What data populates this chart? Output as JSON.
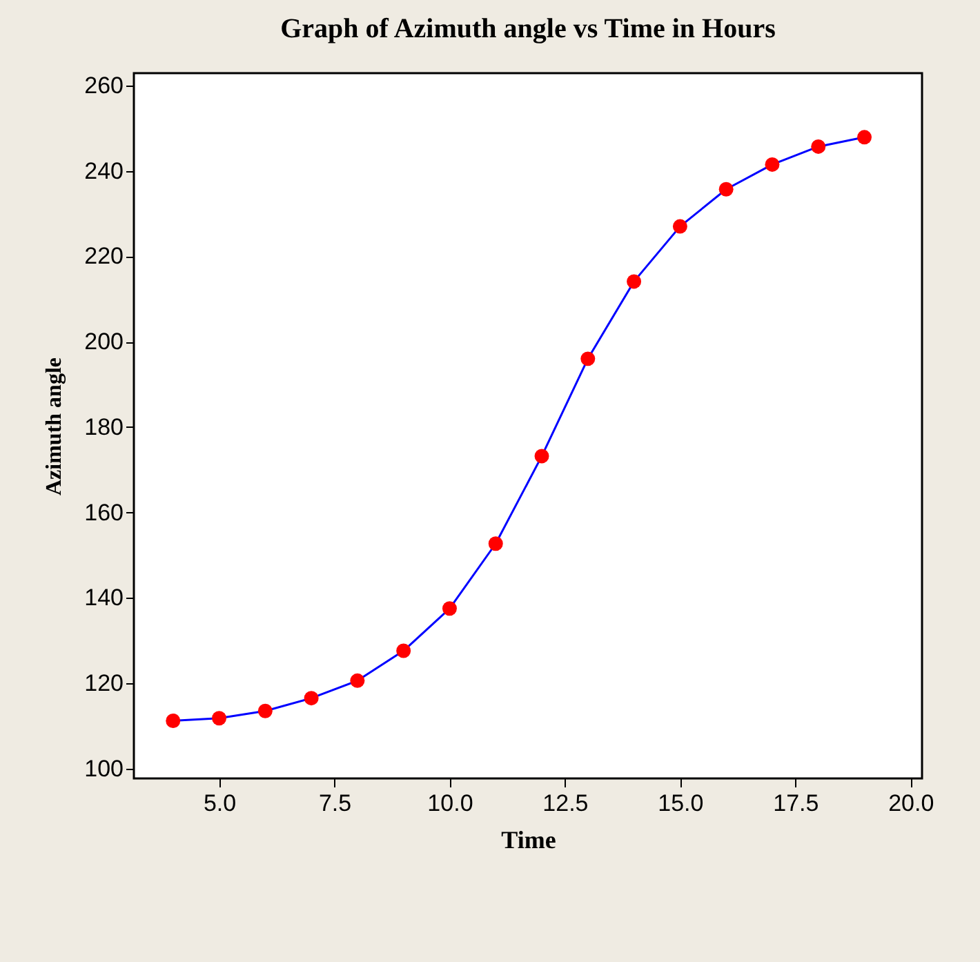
{
  "chart_data": {
    "type": "line",
    "title": "Graph of Azimuth angle vs Time in Hours",
    "xlabel": "Time",
    "ylabel": "Azimuth angle",
    "x": [
      4,
      5,
      6,
      7,
      8,
      9,
      10,
      11,
      12,
      13,
      14,
      15,
      16,
      17,
      18,
      19
    ],
    "series": [
      {
        "color": "#0000ff",
        "colors": [
          "#ff0000",
          "#ff0000",
          "#ff0000",
          "#ff0000",
          "#ff0000",
          "#ff0000",
          "#ff0000",
          "#ff0000",
          "#ff0000",
          "#ff0000",
          "#ff0000",
          "#ff0000",
          "#ff0000",
          "#ff0000",
          "#ff0000",
          "#ff0000"
        ],
        "values": [
          111.2,
          111.8,
          113.5,
          116.5,
          120.6,
          127.6,
          137.5,
          152.7,
          173.2,
          196,
          214.1,
          227,
          235.7,
          241.5,
          245.7,
          247.9
        ]
      }
    ],
    "marker": "circle",
    "line_style": "solid",
    "grid": false,
    "xlim": [
      3.15,
      20.25
    ],
    "ylim": [
      97.7,
      262.9
    ],
    "xticks": [
      {
        "value": 5,
        "label": "5.0"
      },
      {
        "value": 7.5,
        "label": "7.5"
      },
      {
        "value": 10,
        "label": "10.0"
      },
      {
        "value": 12.5,
        "label": "12.5"
      },
      {
        "value": 15,
        "label": "15.0"
      },
      {
        "value": 17.5,
        "label": "17.5"
      },
      {
        "value": 20,
        "label": "20.0"
      }
    ],
    "yticks": [
      100,
      120,
      140,
      160,
      180,
      200,
      220,
      240,
      260
    ]
  }
}
